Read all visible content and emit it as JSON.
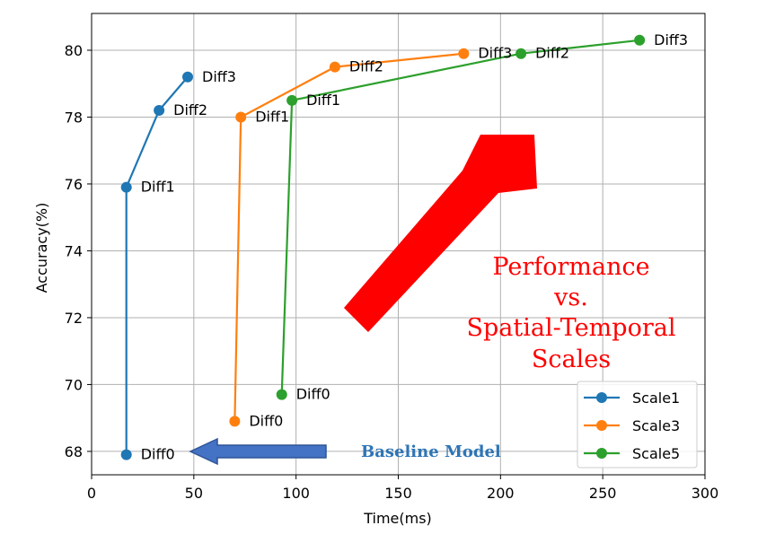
{
  "chart_data": {
    "type": "line",
    "xlabel": "Time(ms)",
    "ylabel": "Accuracy(%)",
    "xlim": [
      0,
      300
    ],
    "ylim": [
      67.3,
      81.1
    ],
    "xticks": [
      0,
      50,
      100,
      150,
      200,
      250,
      300
    ],
    "yticks": [
      68,
      70,
      72,
      74,
      76,
      78,
      80
    ],
    "grid": true,
    "legend_position": "lower-right",
    "series": [
      {
        "name": "Scale1",
        "color": "#1f77b4",
        "points": [
          {
            "x": 17,
            "y": 67.9,
            "label": "Diff0"
          },
          {
            "x": 17,
            "y": 75.9,
            "label": "Diff1"
          },
          {
            "x": 33,
            "y": 78.2,
            "label": "Diff2"
          },
          {
            "x": 47,
            "y": 79.2,
            "label": "Diff3"
          }
        ]
      },
      {
        "name": "Scale3",
        "color": "#ff7f0e",
        "points": [
          {
            "x": 70,
            "y": 68.9,
            "label": "Diff0"
          },
          {
            "x": 73,
            "y": 78.0,
            "label": "Diff1"
          },
          {
            "x": 119,
            "y": 79.5,
            "label": "Diff2"
          },
          {
            "x": 182,
            "y": 79.9,
            "label": "Diff3"
          }
        ]
      },
      {
        "name": "Scale5",
        "color": "#2ca02c",
        "points": [
          {
            "x": 93,
            "y": 69.7,
            "label": "Diff0"
          },
          {
            "x": 98,
            "y": 78.5,
            "label": "Diff1"
          },
          {
            "x": 210,
            "y": 79.9,
            "label": "Diff2"
          },
          {
            "x": 268,
            "y": 80.3,
            "label": "Diff3"
          }
        ]
      }
    ],
    "annotations": {
      "performance_lines": [
        "Performance",
        "vs.",
        "Spatial-Temporal",
        "Scales"
      ],
      "performance_color": "#ff0000",
      "baseline_text": "Baseline Model",
      "baseline_color": "#2e75b6"
    }
  }
}
